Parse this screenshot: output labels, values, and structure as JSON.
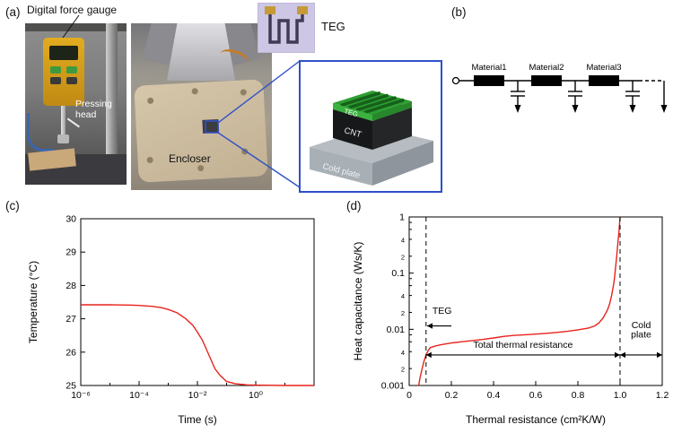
{
  "colors": {
    "accent_blue": "#3050c8",
    "curve_red": "#e8231c"
  },
  "figure": {
    "panel_a": {
      "label": "(a)",
      "force_gauge_caption": "Digital force gauge",
      "pressing_head_caption": "Pressing head",
      "encloser_caption": "Encloser",
      "teg_caption": "TEG",
      "stack": {
        "teg": "TEG",
        "cnt": "CNT",
        "cold_plate": "Cold plate"
      }
    },
    "panel_b": {
      "label": "(b)",
      "materials": [
        "Material1",
        "Material2",
        "Material3"
      ]
    },
    "panel_c": {
      "label": "(c)"
    },
    "panel_d": {
      "label": "(d)"
    }
  },
  "chart_data": [
    {
      "id": "chart-c",
      "type": "line",
      "title": "",
      "xlabel": "Time (s)",
      "ylabel": "Temperature (°C)",
      "xscale": "log",
      "yscale": "linear",
      "xlim": [
        1e-06,
        100
      ],
      "ylim": [
        25,
        30
      ],
      "grid": false,
      "legend": "none",
      "size": [
        334,
        252
      ],
      "margins": {
        "l": 62,
        "r": 12,
        "t": 16,
        "b": 50
      },
      "xticks": [
        {
          "v": 1e-06,
          "label": "10⁻⁶"
        },
        {
          "v": 1e-05
        },
        {
          "v": 0.0001,
          "label": "10⁻⁴"
        },
        {
          "v": 0.001
        },
        {
          "v": 0.01,
          "label": "10⁻²"
        },
        {
          "v": 0.1
        },
        {
          "v": 1,
          "label": "10⁰"
        },
        {
          "v": 10
        }
      ],
      "yticks": [
        {
          "v": 25,
          "label": "25"
        },
        {
          "v": 26,
          "label": "26"
        },
        {
          "v": 27,
          "label": "27"
        },
        {
          "v": 28,
          "label": "28"
        },
        {
          "v": 29,
          "label": "29"
        },
        {
          "v": 30,
          "label": "30"
        }
      ],
      "series": [
        {
          "name": "temperature",
          "color": "#e8231c",
          "points": [
            [
              1e-06,
              27.42
            ],
            [
              1e-05,
              27.42
            ],
            [
              5e-05,
              27.41
            ],
            [
              0.0001,
              27.4
            ],
            [
              0.0003,
              27.37
            ],
            [
              0.0006,
              27.33
            ],
            [
              0.001,
              27.28
            ],
            [
              0.002,
              27.18
            ],
            [
              0.004,
              27.0
            ],
            [
              0.007,
              26.8
            ],
            [
              0.01,
              26.6
            ],
            [
              0.015,
              26.35
            ],
            [
              0.02,
              26.1
            ],
            [
              0.03,
              25.75
            ],
            [
              0.04,
              25.5
            ],
            [
              0.06,
              25.3
            ],
            [
              0.1,
              25.12
            ],
            [
              0.2,
              25.05
            ],
            [
              0.5,
              25.02
            ],
            [
              1,
              25.01
            ],
            [
              10,
              25.0
            ],
            [
              100,
              25.0
            ]
          ]
        }
      ],
      "annotations": []
    },
    {
      "id": "chart-d",
      "type": "line",
      "title": "",
      "xlabel": "Thermal resistance (cm²K/W)",
      "ylabel": "Heat capacitance (Ws/K)",
      "xscale": "linear",
      "yscale": "log",
      "xlim": [
        0,
        1.2
      ],
      "ylim": [
        0.001,
        1
      ],
      "grid": false,
      "legend": "none",
      "size": [
        358,
        252
      ],
      "margins": {
        "l": 66,
        "r": 10,
        "t": 14,
        "b": 50
      },
      "xticks": [
        {
          "v": 0,
          "label": "0"
        },
        {
          "v": 0.2,
          "label": "0.2"
        },
        {
          "v": 0.4,
          "label": "0.4"
        },
        {
          "v": 0.6,
          "label": "0.6"
        },
        {
          "v": 0.8,
          "label": "0.8"
        },
        {
          "v": 1.0,
          "label": "1.0"
        },
        {
          "v": 1.2,
          "label": "1.2"
        }
      ],
      "yticks": [
        {
          "v": 0.001,
          "label": "0.001"
        },
        {
          "v": 0.002,
          "label": "2",
          "small": true
        },
        {
          "v": 0.004,
          "label": "4",
          "small": true
        },
        {
          "v": 0.006,
          "small": true
        },
        {
          "v": 0.008,
          "small": true
        },
        {
          "v": 0.01,
          "label": "0.01"
        },
        {
          "v": 0.02,
          "label": "2",
          "small": true
        },
        {
          "v": 0.04,
          "label": "4",
          "small": true
        },
        {
          "v": 0.06,
          "small": true
        },
        {
          "v": 0.08,
          "small": true
        },
        {
          "v": 0.1,
          "label": "0.1"
        },
        {
          "v": 0.2,
          "label": "2",
          "small": true
        },
        {
          "v": 0.4,
          "label": "4",
          "small": true
        },
        {
          "v": 0.6,
          "small": true
        },
        {
          "v": 0.8,
          "small": true
        },
        {
          "v": 1,
          "label": "1"
        }
      ],
      "series": [
        {
          "name": "heat-capacitance",
          "color": "#e8231c",
          "points": [
            [
              0.045,
              0.001
            ],
            [
              0.05,
              0.0013
            ],
            [
              0.06,
              0.0019
            ],
            [
              0.07,
              0.0027
            ],
            [
              0.08,
              0.0035
            ],
            [
              0.09,
              0.0042
            ],
            [
              0.1,
              0.0047
            ],
            [
              0.12,
              0.005
            ],
            [
              0.15,
              0.0053
            ],
            [
              0.2,
              0.0057
            ],
            [
              0.25,
              0.006
            ],
            [
              0.3,
              0.0063
            ],
            [
              0.35,
              0.0066
            ],
            [
              0.4,
              0.007
            ],
            [
              0.45,
              0.0075
            ],
            [
              0.5,
              0.0078
            ],
            [
              0.55,
              0.008
            ],
            [
              0.6,
              0.0082
            ],
            [
              0.65,
              0.0085
            ],
            [
              0.7,
              0.0088
            ],
            [
              0.75,
              0.0092
            ],
            [
              0.8,
              0.0098
            ],
            [
              0.85,
              0.0105
            ],
            [
              0.88,
              0.0115
            ],
            [
              0.9,
              0.013
            ],
            [
              0.92,
              0.016
            ],
            [
              0.94,
              0.022
            ],
            [
              0.95,
              0.028
            ],
            [
              0.96,
              0.04
            ],
            [
              0.97,
              0.065
            ],
            [
              0.975,
              0.09
            ],
            [
              0.98,
              0.14
            ],
            [
              0.985,
              0.22
            ],
            [
              0.99,
              0.35
            ],
            [
              0.995,
              0.55
            ],
            [
              1.0,
              1.0
            ]
          ]
        }
      ],
      "annotations": [
        {
          "type": "vline",
          "x": 0.08
        },
        {
          "type": "vline",
          "x": 1.0
        },
        {
          "type": "harrow",
          "x1": 0.085,
          "x2": 0.2,
          "y": 0.0115,
          "heads": "left"
        },
        {
          "type": "text",
          "x": 0.11,
          "y": 0.019,
          "text": "TEG",
          "anchor": "start"
        },
        {
          "type": "harrow",
          "x1": 0.08,
          "x2": 1.0,
          "y": 0.0035,
          "heads": "both"
        },
        {
          "type": "text",
          "x": 0.54,
          "y": 0.0047,
          "text": "Total thermal resistance",
          "anchor": "middle"
        },
        {
          "type": "harrow",
          "x1": 1.0,
          "x2": 1.2,
          "y": 0.0035,
          "heads": "both"
        },
        {
          "type": "text",
          "x": 1.1,
          "y": 0.0105,
          "text": "Cold",
          "anchor": "middle"
        },
        {
          "type": "text",
          "x": 1.1,
          "y": 0.0072,
          "text": "plate",
          "anchor": "middle"
        }
      ]
    }
  ]
}
